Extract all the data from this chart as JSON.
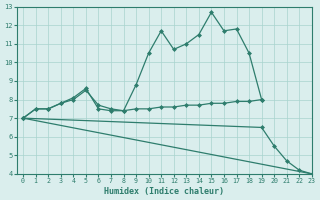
{
  "color": "#2e7d6d",
  "bg_color": "#daeeed",
  "grid_color": "#a8d4ce",
  "xlabel": "Humidex (Indice chaleur)",
  "ylim": [
    4,
    13
  ],
  "xlim": [
    -0.5,
    23
  ],
  "yticks": [
    4,
    5,
    6,
    7,
    8,
    9,
    10,
    11,
    12,
    13
  ],
  "xticks": [
    0,
    1,
    2,
    3,
    4,
    5,
    6,
    7,
    8,
    9,
    10,
    11,
    12,
    13,
    14,
    15,
    16,
    17,
    18,
    19,
    20,
    21,
    22,
    23
  ],
  "marker": "D",
  "markersize": 2.0,
  "linewidth": 0.9,
  "line1_x": [
    0,
    1,
    2,
    3,
    4,
    5,
    6,
    7,
    8,
    9,
    10,
    11,
    12,
    13,
    14,
    15,
    16,
    17,
    18,
    19
  ],
  "line1_y": [
    7.0,
    7.5,
    7.5,
    7.8,
    8.1,
    8.6,
    7.5,
    7.4,
    7.4,
    8.8,
    10.5,
    11.7,
    10.7,
    11.0,
    11.5,
    12.7,
    11.7,
    11.8,
    10.5,
    8.0
  ],
  "line2_x": [
    0,
    1,
    2,
    3,
    4,
    5,
    6,
    7,
    8,
    9,
    10,
    11,
    12,
    13,
    14,
    15,
    16,
    17,
    18,
    19
  ],
  "line2_y": [
    7.0,
    7.5,
    7.5,
    7.8,
    8.0,
    8.5,
    7.7,
    7.5,
    7.4,
    7.5,
    7.5,
    7.6,
    7.6,
    7.7,
    7.7,
    7.8,
    7.8,
    7.9,
    7.9,
    8.0
  ],
  "line3_x": [
    0,
    19,
    20,
    21,
    22,
    23
  ],
  "line3_y": [
    7.0,
    6.5,
    5.5,
    4.7,
    4.2,
    4.0
  ],
  "line4_x": [
    0,
    23
  ],
  "line4_y": [
    7.0,
    4.0
  ]
}
